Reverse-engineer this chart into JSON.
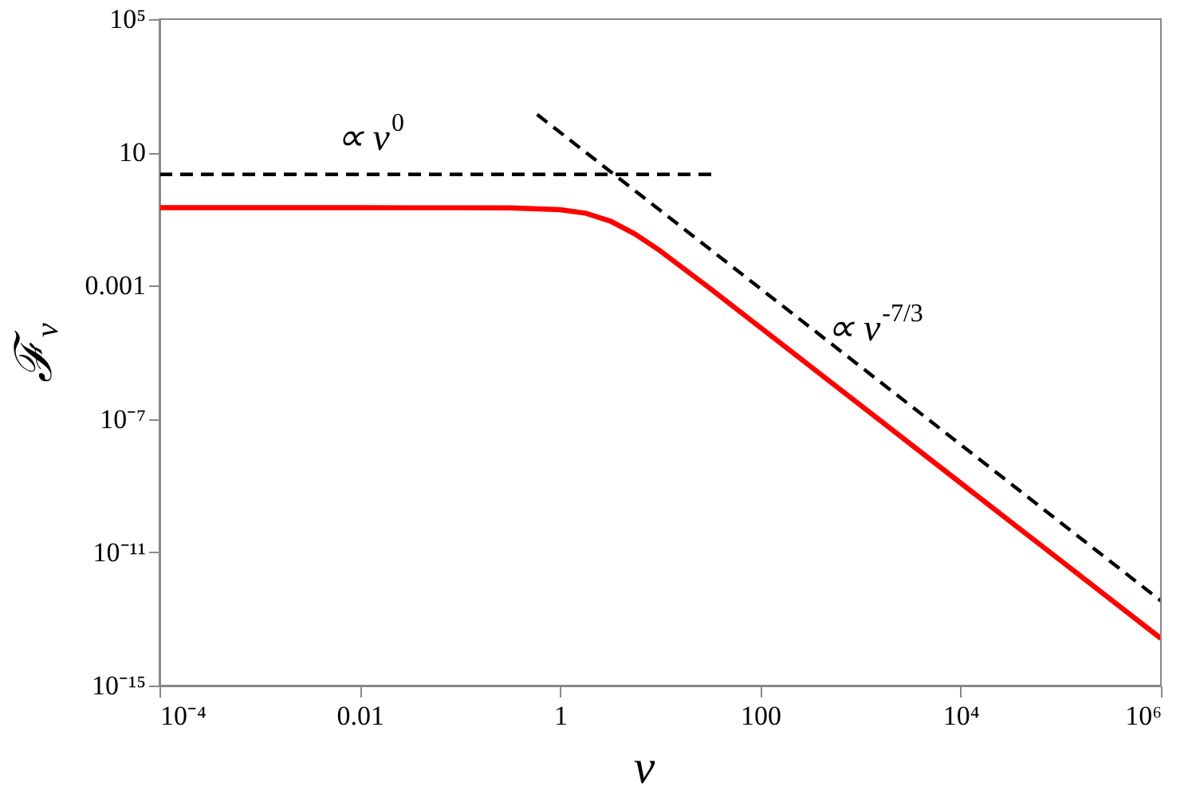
{
  "chart_data": {
    "type": "line",
    "xlabel": "ν",
    "ylabel": "ℱ$_{ν}$",
    "log": "xy",
    "grid": false,
    "marker": "none",
    "xlim": [
      0.0001,
      1000000
    ],
    "ylim": [
      1e-15,
      100000
    ],
    "xticks": [
      {
        "value": 0.0001,
        "label": "10⁻⁴"
      },
      0.01,
      1,
      100,
      {
        "value": 10000,
        "label": "10⁴"
      },
      {
        "value": 1000000,
        "label": "10⁶"
      }
    ],
    "yticks": [
      {
        "value": 1e-15,
        "label": "10⁻¹⁵"
      },
      {
        "value": 1e-11,
        "label": "10⁻¹¹"
      },
      {
        "value": 1e-07,
        "label": "10⁻⁷"
      },
      0.001,
      10,
      {
        "value": 100000,
        "label": "10⁵"
      }
    ],
    "series": [
      {
        "color": "#ff0000",
        "line_style": "solid",
        "x": [
          0.0001,
          0.01,
          0.1,
          0.316,
          1,
          1.78,
          3.16,
          5.62,
          10,
          31.6,
          100,
          1000,
          10000,
          100000,
          1000000
        ],
        "values": [
          0.219,
          0.219,
          0.218,
          0.216,
          0.192,
          0.151,
          0.0877,
          0.0354,
          0.0111,
          0.00082,
          5.6e-05,
          2.6e-07,
          1.2e-09,
          5.6e-12,
          2.6e-14
        ]
      },
      {
        "color": "#000000",
        "line_style": "dashed",
        "x": [
          0.0001,
          36
        ],
        "values": [
          2.2,
          2.2
        ]
      },
      {
        "color": "#000000",
        "line_style": "dashed",
        "x": [
          0.59,
          1000000
        ],
        "values": [
          138,
          3.5e-13
        ]
      }
    ],
    "annotations": [
      "∝ ν$^{0}$",
      "∝ ν$^{-7/3}$"
    ]
  }
}
